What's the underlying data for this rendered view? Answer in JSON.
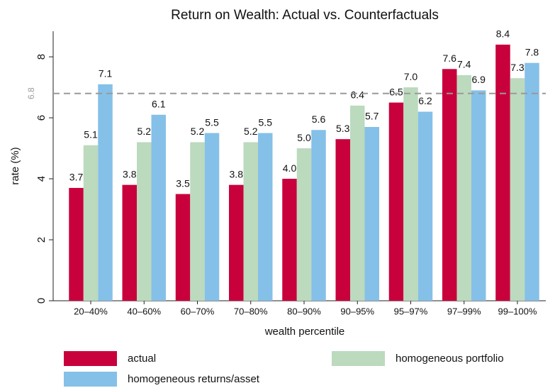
{
  "chart_data": {
    "type": "bar",
    "title": "Return on Wealth: Actual vs. Counterfactuals",
    "x_label": "wealth percentile",
    "y_label": "rate (%)",
    "categories": [
      "20–40%",
      "40–60%",
      "60–70%",
      "70–80%",
      "80–90%",
      "90–95%",
      "95–97%",
      "97–99%",
      "99–100%"
    ],
    "series": [
      {
        "name": "actual",
        "color": "#c8003c",
        "values": [
          3.7,
          3.8,
          3.5,
          3.8,
          4.0,
          5.3,
          6.5,
          7.6,
          8.4
        ],
        "value_labels": [
          "3.7",
          "3.8",
          "3.5",
          "3.8",
          "4.0",
          "5.3",
          "6.5",
          "7.6",
          "8.4"
        ]
      },
      {
        "name": "homogeneous portfolio",
        "color": "#bcdabd",
        "values": [
          5.1,
          5.2,
          5.2,
          5.2,
          5.0,
          6.4,
          7.0,
          7.4,
          7.3
        ],
        "value_labels": [
          "5.1",
          "5.2",
          "5.2",
          "5.2",
          "5.0",
          "6.4",
          "7.0",
          "7.4",
          "7.3"
        ]
      },
      {
        "name": "homogeneous returns/asset",
        "color": "#85c0e8",
        "values": [
          7.1,
          6.1,
          5.5,
          5.5,
          5.6,
          5.7,
          6.2,
          6.9,
          7.8
        ],
        "value_labels": [
          "7.1",
          "6.1",
          "5.5",
          "5.5",
          "5.6",
          "5.7",
          "6.2",
          "6.9",
          "7.8"
        ]
      }
    ],
    "reference_line": 6.8,
    "ylim": [
      0,
      8.84
    ],
    "yticks": [
      0,
      2,
      4,
      6,
      8
    ],
    "grid": false
  }
}
